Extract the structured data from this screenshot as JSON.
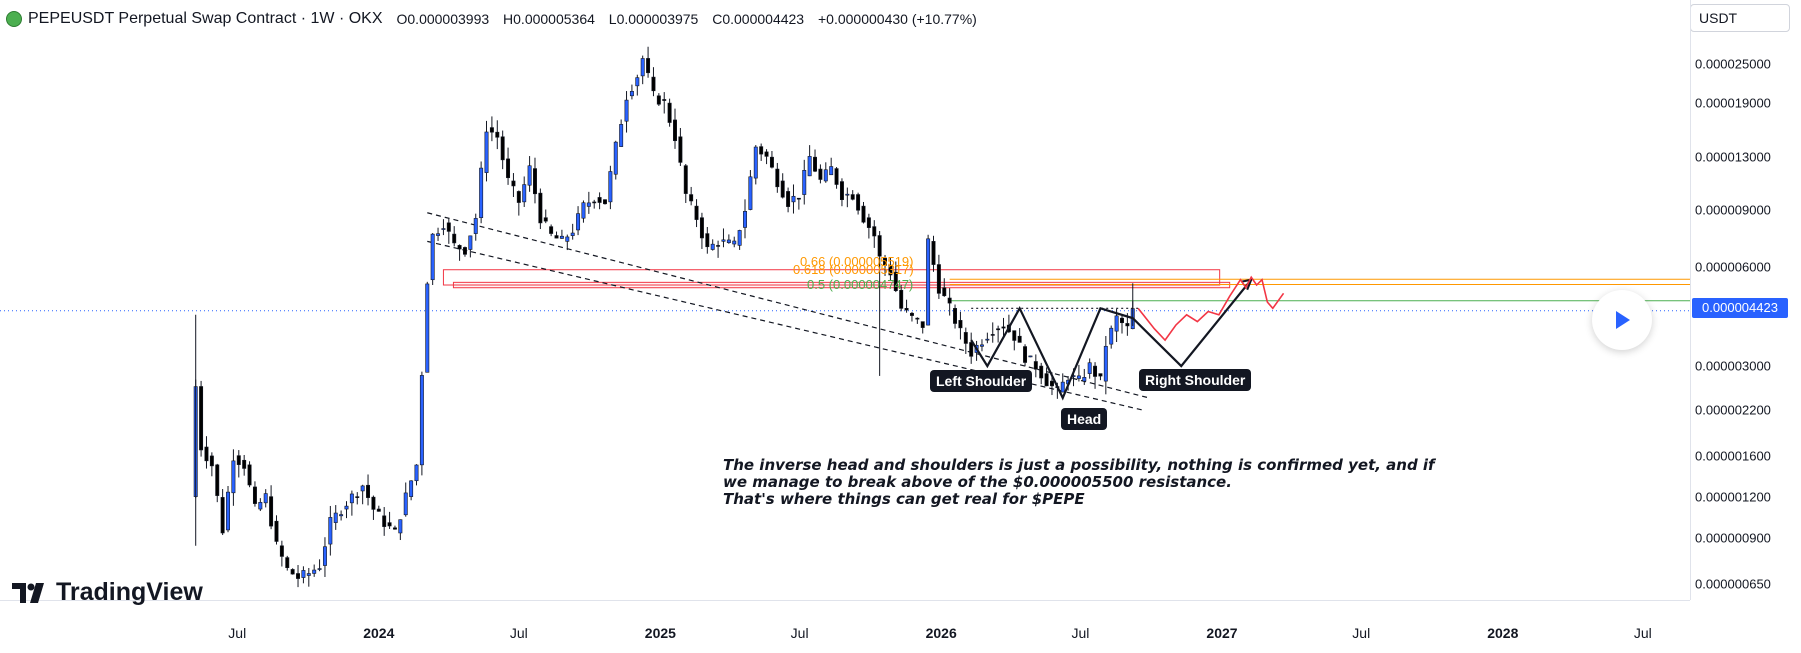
{
  "header": {
    "symbol": "PEPEUSDT Perpetual Swap Contract · 1W · OKX",
    "open": "O0.000003993",
    "high": "H0.000005364",
    "low": "L0.000003975",
    "close": "C0.000004423",
    "change": "+0.000000430 (+10.77%)"
  },
  "currency": "USDT",
  "last_price_label": "0.000004423",
  "price_axis_ticks": [
    "0.000025000",
    "0.000019000",
    "0.000013000",
    "0.000009000",
    "0.000006000",
    "0.000003000",
    "0.000002200",
    "0.000001600",
    "0.000001200",
    "0.000000900",
    "0.000000650"
  ],
  "time_axis_ticks": [
    {
      "label": "Jul",
      "bold": false
    },
    {
      "label": "2024",
      "bold": true
    },
    {
      "label": "Jul",
      "bold": false
    },
    {
      "label": "2025",
      "bold": true
    },
    {
      "label": "Jul",
      "bold": false
    },
    {
      "label": "2026",
      "bold": true
    },
    {
      "label": "Jul",
      "bold": false
    },
    {
      "label": "2027",
      "bold": true
    },
    {
      "label": "Jul",
      "bold": false
    },
    {
      "label": "2028",
      "bold": true
    },
    {
      "label": "Jul",
      "bold": false
    }
  ],
  "brand": "TradingView",
  "annotations": {
    "left_shoulder": "Left Shoulder",
    "head": "Head",
    "right_shoulder": "Right Shoulder",
    "note_line1": "The inverse head and shoulders is just a possibility, nothing is confirmed yet, and if",
    "note_line2": "we manage to break above of the $0.000005500 resistance.",
    "note_line3": "That's where things can get real for $PEPE",
    "fib_066": "0.66 (0.000005519)",
    "fib_0618": "0.618 (0.000005317)",
    "fib_05": "0.5 (0.000004747)"
  },
  "colors": {
    "up_candle": "#2962ff",
    "down_candle": "#000000",
    "resistance_box": "#f23645",
    "fib_orange": "#ff9800",
    "fib_green": "#4caf50",
    "last_price": "#2962ff",
    "projection_red": "#f23645"
  },
  "chart_data": {
    "type": "candlestick",
    "title": "PEPEUSDT Perpetual Swap Contract · 1W · OKX",
    "y_scale": "log",
    "ylim": [
      5.8e-07,
      3.3e-05
    ],
    "x_range": [
      "2023-05-01",
      "2028-09-30"
    ],
    "last_price": 4.423e-06,
    "ohlc_last": {
      "open": 3.993e-06,
      "high": 5.364e-06,
      "low": 3.975e-06,
      "close": 4.423e-06
    },
    "price_path": [
      [
        "2023-05-01",
        1.2e-06
      ],
      [
        "2023-05-08",
        2.6e-06
      ],
      [
        "2023-05-15",
        1.7e-06
      ],
      [
        "2023-05-29",
        1.5e-06
      ],
      [
        "2023-06-12",
        9.5e-07
      ],
      [
        "2023-06-26",
        1.6e-06
      ],
      [
        "2023-07-10",
        1.5e-06
      ],
      [
        "2023-07-24",
        1.1e-06
      ],
      [
        "2023-08-07",
        1.2e-06
      ],
      [
        "2023-08-21",
        8.5e-07
      ],
      [
        "2023-09-04",
        7.2e-07
      ],
      [
        "2023-09-18",
        6.8e-07
      ],
      [
        "2023-10-02",
        7e-07
      ],
      [
        "2023-10-16",
        7.4e-07
      ],
      [
        "2023-10-30",
        1e-06
      ],
      [
        "2023-11-13",
        1.1e-06
      ],
      [
        "2023-11-27",
        1.2e-06
      ],
      [
        "2023-12-11",
        1.3e-06
      ],
      [
        "2023-12-25",
        1.1e-06
      ],
      [
        "2024-01-08",
        1e-06
      ],
      [
        "2024-01-22",
        9.3e-07
      ],
      [
        "2024-02-05",
        1.2e-06
      ],
      [
        "2024-02-19",
        1.5e-06
      ],
      [
        "2024-03-04",
        5.5e-06
      ],
      [
        "2024-03-11",
        7.5e-06
      ],
      [
        "2024-03-25",
        8.2e-06
      ],
      [
        "2024-04-08",
        7e-06
      ],
      [
        "2024-04-22",
        6.8e-06
      ],
      [
        "2024-05-06",
        8.5e-06
      ],
      [
        "2024-05-20",
        1.6e-05
      ],
      [
        "2024-06-03",
        1.5e-05
      ],
      [
        "2024-06-17",
        1.1e-05
      ],
      [
        "2024-07-01",
        9.5e-06
      ],
      [
        "2024-07-15",
        1.2e-05
      ],
      [
        "2024-07-29",
        8.5e-06
      ],
      [
        "2024-08-12",
        7.5e-06
      ],
      [
        "2024-08-26",
        7.2e-06
      ],
      [
        "2024-09-09",
        7.8e-06
      ],
      [
        "2024-09-23",
        9.2e-06
      ],
      [
        "2024-10-07",
        9.8e-06
      ],
      [
        "2024-10-21",
        9.5e-06
      ],
      [
        "2024-11-04",
        1.4e-05
      ],
      [
        "2024-11-18",
        2e-05
      ],
      [
        "2024-12-02",
        2.3e-05
      ],
      [
        "2024-12-09",
        2.6e-05
      ],
      [
        "2024-12-23",
        2e-05
      ],
      [
        "2025-01-06",
        1.9e-05
      ],
      [
        "2025-01-20",
        1.5e-05
      ],
      [
        "2025-02-03",
        1e-05
      ],
      [
        "2025-02-17",
        8.5e-06
      ],
      [
        "2025-03-03",
        6.8e-06
      ],
      [
        "2025-03-17",
        7.2e-06
      ],
      [
        "2025-04-07",
        7e-06
      ],
      [
        "2025-04-21",
        9e-06
      ],
      [
        "2025-05-05",
        1.4e-05
      ],
      [
        "2025-05-19",
        1.3e-05
      ],
      [
        "2025-06-02",
        1.1e-05
      ],
      [
        "2025-06-16",
        9.5e-06
      ],
      [
        "2025-06-30",
        1e-05
      ],
      [
        "2025-07-14",
        1.3e-05
      ],
      [
        "2025-07-28",
        1.1e-05
      ],
      [
        "2025-08-11",
        1.2e-05
      ],
      [
        "2025-08-25",
        1e-05
      ],
      [
        "2025-09-08",
        1e-05
      ],
      [
        "2025-09-22",
        8.5e-06
      ],
      [
        "2025-10-06",
        7.5e-06
      ],
      [
        "2025-10-13",
        6.4e-06
      ],
      [
        "2025-10-27",
        5.8e-06
      ],
      [
        "2025-11-10",
        4.5e-06
      ],
      [
        "2025-11-24",
        4.2e-06
      ],
      [
        "2025-12-08",
        4e-06
      ],
      [
        "2025-12-15",
        7.2e-06
      ],
      [
        "2025-12-29",
        5.2e-06
      ],
      [
        "2026-01-12",
        4.5e-06
      ],
      [
        "2026-01-26",
        3.8e-06
      ],
      [
        "2026-02-09",
        3.3e-06
      ],
      [
        "2026-02-23",
        3.6e-06
      ],
      [
        "2026-03-09",
        3.9e-06
      ],
      [
        "2026-03-23",
        4e-06
      ],
      [
        "2026-04-06",
        3.7e-06
      ],
      [
        "2026-04-20",
        3.2e-06
      ],
      [
        "2026-05-04",
        3e-06
      ],
      [
        "2026-05-18",
        2.7e-06
      ],
      [
        "2026-06-01",
        2.5e-06
      ],
      [
        "2026-06-15",
        2.8e-06
      ],
      [
        "2026-06-29",
        2.7e-06
      ],
      [
        "2026-07-13",
        3e-06
      ],
      [
        "2026-07-27",
        2.7e-06
      ],
      [
        "2026-08-03",
        3.5e-06
      ],
      [
        "2026-08-17",
        4.2e-06
      ],
      [
        "2026-08-31",
        3.9e-06
      ],
      [
        "2026-09-07",
        4.423e-06
      ]
    ],
    "fib_levels": [
      {
        "label": "0.66 (0.000005519)",
        "value": 5.519e-06
      },
      {
        "label": "0.618 (0.000005317)",
        "value": 5.317e-06
      },
      {
        "label": "0.5 (0.000004747)",
        "value": 4.747e-06
      }
    ],
    "resistance": 5.5e-06,
    "pattern": {
      "type": "inverse head and shoulders",
      "labels": [
        "Left Shoulder",
        "Head",
        "Right Shoulder"
      ],
      "neckline": 4.5e-06
    },
    "yticks": [
      2.5e-05,
      1.9e-05,
      1.3e-05,
      9e-06,
      6e-06,
      3e-06,
      2.2e-06,
      1.6e-06,
      1.2e-06,
      9e-07,
      6.5e-07
    ],
    "xticks": [
      "Jul",
      "2024",
      "Jul",
      "2025",
      "Jul",
      "2026",
      "Jul",
      "2027",
      "Jul",
      "2028",
      "Jul"
    ]
  }
}
